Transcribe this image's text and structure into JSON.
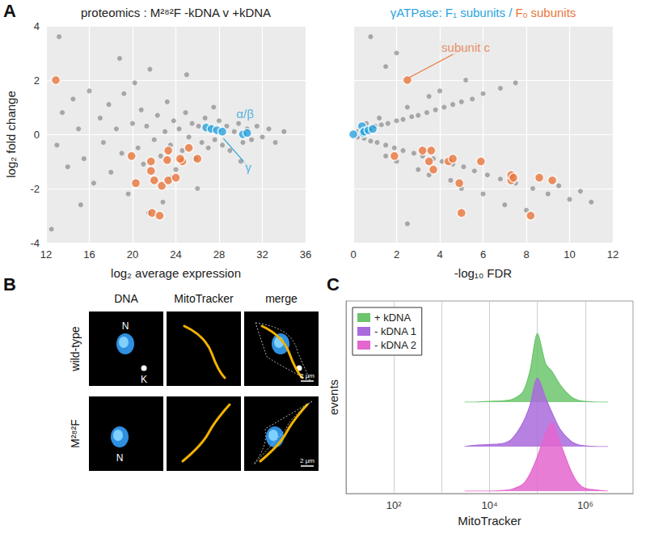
{
  "panel_letters": [
    "A",
    "B",
    "C"
  ],
  "chart_data": [
    {
      "type": "scatter",
      "title": "proteomics : M²⁸²F -kDNA v +kDNA",
      "x_label": "log₂ average expression",
      "y_label": "log₂ fold change",
      "xlim": [
        12,
        36
      ],
      "xticks": [
        12,
        16,
        20,
        24,
        28,
        32,
        36
      ],
      "ylim": [
        -4,
        4
      ],
      "yticks": [
        -4,
        -2,
        0,
        2,
        4
      ],
      "grid": true,
      "series": [
        {
          "color": "#6e6e6e",
          "x": [
            13,
            13.5,
            14,
            14.5,
            15,
            15.5,
            16,
            16.4,
            17,
            17.3,
            17.8,
            18,
            18.5,
            19,
            19.2,
            19.6,
            20,
            20.5,
            20.8,
            21,
            21.3,
            21.6,
            22,
            22.3,
            22.6,
            23,
            23.2,
            23.5,
            23.8,
            24,
            24.3,
            24.6,
            24.9,
            25.2,
            25.5,
            25.8,
            26.1,
            26.4,
            26.7,
            27,
            27.3,
            27.6,
            28,
            28.3,
            28.7,
            29,
            29.4,
            29.8,
            30.2,
            30.6,
            31,
            31.5,
            32,
            32.6,
            33.2,
            34,
            21.5,
            18.8,
            25,
            26,
            22.8,
            20.2,
            27.5,
            23.6,
            30,
            15.2,
            13.2,
            12.5
          ],
          "values": [
            -0.4,
            0.8,
            -1.2,
            1.3,
            0.2,
            -0.9,
            1.6,
            -1.8,
            0.6,
            -0.3,
            1.1,
            -1.4,
            0.2,
            -0.7,
            1.5,
            -2.2,
            0.4,
            -0.5,
            0.9,
            -1.1,
            0.3,
            2.4,
            -0.2,
            0.7,
            -0.8,
            0.1,
            1.2,
            -0.4,
            0.5,
            -1.3,
            0.2,
            -0.6,
            0.8,
            -0.1,
            0.4,
            -0.9,
            0.3,
            -0.3,
            0.6,
            -0.5,
            0.2,
            -0.2,
            0.5,
            -0.4,
            0.3,
            -0.6,
            0.1,
            0.4,
            -0.3,
            0.2,
            -0.2,
            0.3,
            -0.1,
            0.2,
            -0.3,
            0.1,
            -2.9,
            2.8,
            2.2,
            -2.0,
            -2.5,
            1.9,
            1.0,
            -1.6,
            -1.0,
            -2.6,
            3.6,
            -3.5
          ]
        },
        {
          "name": "Fₒ subunits",
          "color": "#e8743b",
          "x": [
            12.9,
            19.9,
            20.3,
            21.7,
            21.7,
            21.8,
            22.5,
            22.7,
            23.2,
            23.3,
            23.3,
            24.0,
            24.6,
            24.4,
            25.2,
            26.0,
            22.0
          ],
          "values": [
            2.0,
            -0.8,
            -1.8,
            -1.0,
            -1.35,
            -2.9,
            -3.0,
            -1.9,
            -0.95,
            -0.6,
            -1.7,
            -1.6,
            -1.0,
            -0.9,
            -0.5,
            -0.9,
            -1.7
          ]
        },
        {
          "name": "F₁ subunits",
          "color": "#29a3dc",
          "x": [
            26.8,
            27.3,
            27.8,
            28.3,
            30.2,
            30.6
          ],
          "values": [
            0.25,
            0.2,
            0.15,
            0.1,
            0.0,
            0.05
          ]
        }
      ],
      "annotations": [
        {
          "text": "α/β",
          "x": 30.4,
          "y": 0.75,
          "color": "#29a3dc"
        },
        {
          "text": "γ",
          "x": 30.7,
          "y": -1.2,
          "color": "#29a3dc",
          "points_to": [
            28.4,
            -0.15
          ]
        }
      ]
    },
    {
      "type": "scatter",
      "title": [
        {
          "text": "γATPase: F₁ subunits /",
          "color": "#29a3dc"
        },
        {
          "text": "Fₒ subunits",
          "color": "#e8743b"
        }
      ],
      "x_label": "-log₁₀ FDR",
      "xlim": [
        0,
        12
      ],
      "xticks": [
        0,
        2,
        4,
        6,
        8,
        10,
        12
      ],
      "ylim": [
        -4,
        4
      ],
      "yticks": [
        -4,
        -2,
        0,
        2,
        4
      ],
      "grid": true,
      "tick_labels": "x",
      "series": [
        {
          "color": "#6e6e6e",
          "x": [
            0.2,
            0.5,
            0.8,
            1.0,
            1.3,
            1.6,
            2.0,
            2.3,
            2.7,
            3.0,
            3.4,
            3.8,
            4.2,
            4.6,
            5.0,
            5.5,
            6.0,
            6.8,
            7.5,
            2.5,
            3.5,
            1.2,
            4.0,
            5.2,
            0.6,
            0.2,
            0.5,
            0.8,
            1.1,
            1.5,
            1.9,
            2.3,
            2.8,
            3.2,
            3.7,
            4.1,
            4.6,
            5.1,
            5.6,
            6.2,
            6.8,
            7.5,
            8.3,
            9.0,
            10.0,
            11.0,
            3.0,
            4.5,
            2.0,
            6.0,
            7.0,
            8.0,
            5.0,
            3.5,
            1.5,
            9.5,
            10.5,
            2.0,
            1.5,
            0.8,
            2.5
          ],
          "values": [
            0.1,
            0.15,
            0.2,
            0.3,
            0.35,
            0.4,
            0.5,
            0.55,
            0.65,
            0.7,
            0.8,
            0.9,
            1.0,
            1.1,
            1.2,
            1.3,
            1.5,
            1.7,
            1.9,
            1.0,
            1.4,
            0.6,
            1.6,
            2.0,
            0.4,
            -0.1,
            -0.15,
            -0.25,
            -0.3,
            -0.4,
            -0.5,
            -0.6,
            -0.7,
            -0.8,
            -0.9,
            -1.0,
            -1.1,
            -1.2,
            -1.35,
            -1.5,
            -1.65,
            -1.8,
            -2.0,
            -2.2,
            -2.4,
            -2.5,
            -1.3,
            -1.7,
            -1.0,
            -2.2,
            -2.6,
            -2.8,
            -2.0,
            -1.5,
            -0.8,
            -1.9,
            -2.1,
            3.0,
            2.5,
            3.6,
            -3.3
          ]
        },
        {
          "name": "Fₒ subunits",
          "color": "#e8743b",
          "x": [
            2.5,
            1.9,
            3.2,
            3.5,
            3.7,
            3.6,
            4.4,
            4.6,
            4.9,
            5.0,
            5.9,
            7.3,
            7.3,
            7.4,
            8.2,
            8.6,
            9.2
          ],
          "values": [
            2.0,
            -0.8,
            -0.6,
            -1.0,
            -1.3,
            -0.6,
            -1.0,
            -0.9,
            -1.8,
            -2.9,
            -1.0,
            -1.7,
            -1.5,
            -1.6,
            -3.0,
            -1.6,
            -1.7
          ]
        },
        {
          "name": "F₁ subunits",
          "color": "#29a3dc",
          "x": [
            0,
            0.4,
            0.45,
            0.5,
            0.7,
            0.9
          ],
          "values": [
            0,
            0.3,
            0.05,
            0.1,
            0.15,
            0.2
          ]
        }
      ],
      "annotations": [
        {
          "text": "subunit c",
          "x": 5.2,
          "y": 3.2,
          "color": "#e8743b",
          "points_to": [
            2.6,
            2.1
          ]
        }
      ]
    },
    {
      "type": "area",
      "x_label": "MitoTracker",
      "y_label": "events",
      "log": "x",
      "xlim": [
        10,
        10000000
      ],
      "xticks": [
        {
          "value": 100,
          "label": "10²"
        },
        {
          "value": 10000,
          "label": "10⁴"
        },
        {
          "value": 1000000,
          "label": "10⁶"
        }
      ],
      "ylim": [
        0,
        1
      ],
      "grid": true,
      "tick_labels": "x",
      "legend": "top-left",
      "x": [
        3000,
        5000,
        10000,
        20000,
        30000,
        50000,
        70000,
        100000,
        150000,
        200000,
        300000,
        500000,
        700000,
        1000000,
        2000000,
        3000000
      ],
      "series": [
        {
          "name": "+ kDNA",
          "color": "#6cc56c",
          "values": [
            0,
            0,
            0.01,
            0.02,
            0.04,
            0.15,
            0.45,
            1.0,
            0.55,
            0.45,
            0.25,
            0.08,
            0.03,
            0.01,
            0,
            0
          ]
        },
        {
          "name": "- kDNA 1",
          "color": "#a96bdc",
          "values": [
            0,
            0.02,
            0.03,
            0.05,
            0.12,
            0.35,
            0.6,
            1.0,
            0.7,
            0.5,
            0.25,
            0.08,
            0.03,
            0.01,
            0,
            0
          ]
        },
        {
          "name": "- kDNA 2",
          "color": "#e466cf",
          "values": [
            0,
            0,
            0,
            0.01,
            0.03,
            0.1,
            0.25,
            0.5,
            0.85,
            1.0,
            0.7,
            0.3,
            0.12,
            0.04,
            0.01,
            0
          ]
        }
      ]
    }
  ],
  "panel_B": {
    "columns": [
      "DNA",
      "MitoTracker",
      "merge"
    ],
    "rows": [
      {
        "label": "wild-type",
        "marks": [
          "N",
          "K"
        ]
      },
      {
        "label": "M²⁸²F",
        "marks": [
          "N"
        ]
      }
    ],
    "scale_bar": "2 μm"
  }
}
